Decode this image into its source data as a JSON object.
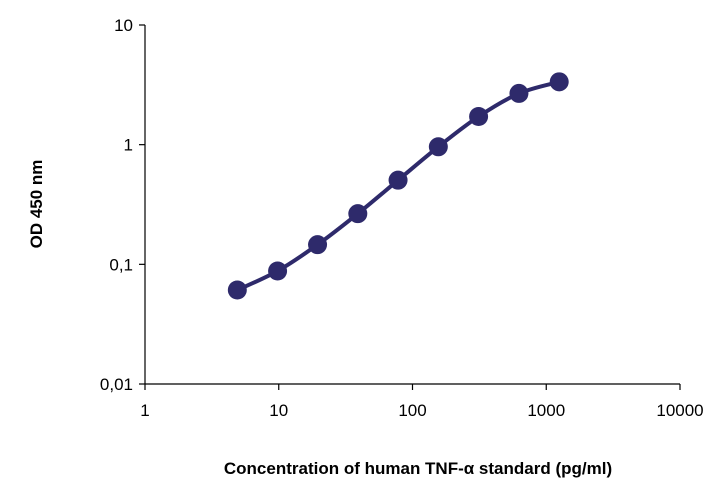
{
  "chart_data": {
    "type": "line",
    "title": "",
    "xlabel": "Concentration of human TNF-α standard (pg/ml)",
    "ylabel": "OD 450 nm",
    "xscale": "log",
    "yscale": "log",
    "xlim": [
      1,
      10000
    ],
    "ylim": [
      0.01,
      10
    ],
    "x_ticks": [
      1,
      10,
      100,
      1000,
      10000
    ],
    "x_tick_labels": [
      "1",
      "10",
      "100",
      "1000",
      "10000"
    ],
    "y_ticks": [
      0.01,
      0.1,
      1,
      10
    ],
    "y_tick_labels": [
      "0,01",
      "0,1",
      "1",
      "10"
    ],
    "grid": false,
    "legend": "none",
    "series": [
      {
        "color": "#2e2a6b",
        "marker": "circle",
        "x": [
          4.9,
          9.8,
          19.5,
          39,
          78,
          156,
          312,
          625,
          1250
        ],
        "y": [
          0.061,
          0.088,
          0.146,
          0.265,
          0.505,
          0.96,
          1.72,
          2.68,
          3.35
        ]
      }
    ]
  }
}
